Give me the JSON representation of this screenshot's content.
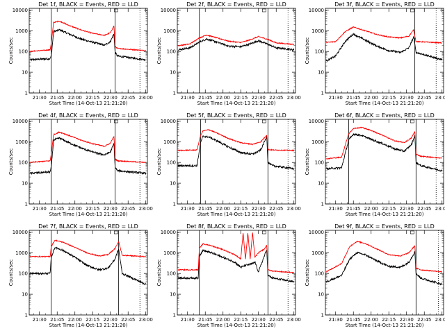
{
  "chart_data": {
    "type": "line",
    "xlabel": "Start Time (14-Oct-13 21:21:20)",
    "ylabel": "Counts/sec",
    "y_scale": "log",
    "ylim": [
      1,
      12000
    ],
    "xlim": [
      "21:21:20",
      "23:01:20"
    ],
    "x_tick_labels": [
      "21:30",
      "21:45",
      "22:00",
      "22:15",
      "22:30",
      "22:45",
      "23:00"
    ],
    "y_tick_labels": [
      "1",
      "10",
      "100",
      "1000",
      "10000"
    ],
    "legend_entries": [
      "BLACK = Events",
      "RED = LLD"
    ],
    "colors": {
      "events": "#000000",
      "lld": "#ff0000"
    },
    "panels": [
      {
        "title": "Det 1f, BLACK = Events, RED = LLD",
        "vlines": [
          "21:40",
          "22:34"
        ],
        "dotted_vline": "22:55",
        "x": [
          "21:22",
          "21:39",
          "21:40",
          "21:42",
          "21:47",
          "21:55",
          "22:05",
          "22:15",
          "22:25",
          "22:30",
          "22:33",
          "22:34",
          "22:36",
          "23:00"
        ],
        "series": [
          {
            "name": "Events",
            "values": [
              40,
              45,
              60,
              900,
              1100,
              700,
              400,
              280,
              200,
              300,
              700,
              90,
              60,
              40
            ]
          },
          {
            "name": "LLD",
            "values": [
              100,
              120,
              250,
              2500,
              2900,
              1800,
              1100,
              750,
              600,
              800,
              1700,
              180,
              140,
              110
            ]
          }
        ]
      },
      {
        "title": "Det 2f, BLACK = Events, RED = LLD",
        "vlines": [
          "21:40",
          "22:38"
        ],
        "dotted_vline": "22:55",
        "x": [
          "21:22",
          "21:32",
          "21:40",
          "21:46",
          "21:55",
          "22:05",
          "22:15",
          "22:22",
          "22:30",
          "22:38",
          "22:45",
          "23:00"
        ],
        "series": [
          {
            "name": "Events",
            "values": [
              120,
              150,
              280,
              400,
              280,
              180,
              170,
              220,
              330,
              220,
              150,
              120
            ]
          },
          {
            "name": "LLD",
            "values": [
              190,
              230,
              450,
              620,
              450,
              310,
              270,
              350,
              520,
              380,
              260,
              220
            ]
          }
        ]
      },
      {
        "title": "Det 3f, BLACK = Events, RED = LLD",
        "vlines": [
          "22:37"
        ],
        "dotted_vline": "22:55",
        "x": [
          "21:22",
          "21:30",
          "21:38",
          "21:45",
          "21:55",
          "22:05",
          "22:15",
          "22:25",
          "22:32",
          "22:36",
          "22:38",
          "23:00"
        ],
        "series": [
          {
            "name": "Events",
            "values": [
              35,
              60,
              300,
              700,
              350,
              180,
              110,
              90,
              150,
              500,
              90,
              40
            ]
          },
          {
            "name": "LLD",
            "values": [
              270,
              300,
              900,
              1500,
              1000,
              650,
              500,
              450,
              550,
              1100,
              300,
              260
            ]
          }
        ]
      },
      {
        "title": "Det 4f, BLACK = Events, RED = LLD",
        "vlines": [
          "21:40",
          "22:34"
        ],
        "dotted_vline": "22:55",
        "x": [
          "21:22",
          "21:39",
          "21:40",
          "21:42",
          "21:47",
          "21:55",
          "22:05",
          "22:15",
          "22:25",
          "22:30",
          "22:33",
          "22:34",
          "22:36",
          "23:00"
        ],
        "series": [
          {
            "name": "Events",
            "values": [
              30,
              35,
              60,
              1200,
              1500,
              900,
              500,
              320,
              230,
              320,
              800,
              60,
              40,
              30
            ]
          },
          {
            "name": "LLD",
            "values": [
              100,
              120,
              250,
              2200,
              2900,
              2000,
              1200,
              800,
              600,
              850,
              1800,
              150,
              120,
              100
            ]
          }
        ]
      },
      {
        "title": "Det 5f, BLACK = Events, RED = LLD",
        "vlines": [
          "21:41",
          "22:38"
        ],
        "dotted_vline": "22:55",
        "x": [
          "21:22",
          "21:38",
          "21:41",
          "21:43",
          "21:48",
          "21:55",
          "22:05",
          "22:15",
          "22:25",
          "22:32",
          "22:37",
          "22:38",
          "22:42",
          "23:00"
        ],
        "series": [
          {
            "name": "Events",
            "values": [
              70,
              70,
              900,
              1800,
              1700,
              1100,
              550,
              300,
              250,
              400,
              1800,
              100,
              70,
              50
            ]
          },
          {
            "name": "LLD",
            "values": [
              380,
              400,
              2000,
              3300,
              3800,
              2600,
              1400,
              900,
              750,
              1000,
              2100,
              420,
              400,
              380
            ]
          }
        ]
      },
      {
        "title": "Det 6f, BLACK = Events, RED = LLD",
        "vlines": [
          "21:41",
          "22:38"
        ],
        "dotted_vline": "22:55",
        "x": [
          "21:22",
          "21:35",
          "21:41",
          "21:45",
          "21:52",
          "22:00",
          "22:10",
          "22:20",
          "22:28",
          "22:34",
          "22:37",
          "22:38",
          "22:42",
          "23:00"
        ],
        "series": [
          {
            "name": "Events",
            "values": [
              50,
              55,
              1200,
              2300,
              2000,
              1300,
              800,
              450,
              350,
              700,
              2000,
              100,
              70,
              40
            ]
          },
          {
            "name": "LLD",
            "values": [
              150,
              180,
              2400,
              4300,
              4900,
              3500,
              2000,
              1100,
              900,
              1500,
              3100,
              250,
              200,
              160
            ]
          }
        ]
      },
      {
        "title": "Det 7f, BLACK = Events, RED = LLD",
        "vlines": [
          "21:40",
          "22:37"
        ],
        "dotted_vline": "22:55",
        "x": [
          "21:22",
          "21:39",
          "21:40",
          "21:43",
          "21:50",
          "22:00",
          "22:10",
          "22:20",
          "22:28",
          "22:34",
          "22:37",
          "22:40",
          "23:00"
        ],
        "series": [
          {
            "name": "Events",
            "values": [
              100,
              100,
              600,
              1800,
              1300,
              600,
              250,
              150,
              180,
              500,
              1500,
              100,
              30
            ]
          },
          {
            "name": "LLD",
            "values": [
              650,
              650,
              2000,
              4000,
              3200,
              1800,
              1000,
              700,
              800,
              1600,
              3500,
              750,
              650
            ]
          }
        ]
      },
      {
        "title": "Det 8f, BLACK = Events, RED = LLD",
        "vlines": [
          "21:40",
          "22:38"
        ],
        "dotted_vline": "22:55",
        "x": [
          "21:22",
          "21:39",
          "21:40",
          "21:43",
          "21:50",
          "22:00",
          "22:10",
          "22:15",
          "22:17",
          "22:19",
          "22:21",
          "22:23",
          "22:25",
          "22:27",
          "22:30",
          "22:35",
          "22:37",
          "22:38",
          "22:42",
          "23:00"
        ],
        "series": [
          {
            "name": "Events",
            "values": [
              60,
              60,
              700,
              1300,
              1000,
              600,
              350,
              200,
              220,
              250,
              260,
              280,
              300,
              350,
              120,
              700,
              1400,
              80,
              60,
              40
            ]
          },
          {
            "name": "LLD",
            "values": [
              150,
              150,
              1600,
              2700,
              2200,
              1400,
              800,
              500,
              9000,
              500,
              9000,
              500,
              9000,
              600,
              1000,
              1500,
              2300,
              150,
              130,
              110
            ]
          }
        ]
      },
      {
        "title": "Det 9f, BLACK = Events, RED = LLD",
        "vlines": [
          "22:38"
        ],
        "dotted_vline": "22:57",
        "x": [
          "21:22",
          "21:35",
          "21:42",
          "21:48",
          "21:55",
          "22:05",
          "22:15",
          "22:25",
          "22:32",
          "22:37",
          "22:38",
          "22:42",
          "23:00"
        ],
        "series": [
          {
            "name": "Events",
            "values": [
              40,
              80,
              500,
              1000,
              800,
              400,
              220,
              200,
              350,
              1100,
              100,
              60,
              30
            ]
          },
          {
            "name": "LLD",
            "values": [
              120,
              300,
              2000,
              3500,
              2800,
              1500,
              800,
              700,
              1000,
              2200,
              180,
              150,
              120
            ]
          }
        ]
      }
    ]
  }
}
